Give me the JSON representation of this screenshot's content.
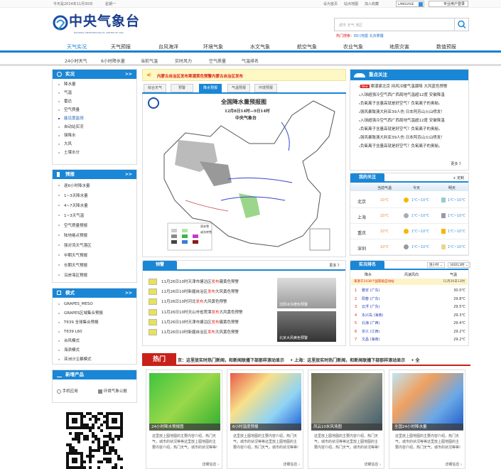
{
  "topbar": {
    "date": "今天是2014年11月30日",
    "weekday": "星期一",
    "links": [
      "设为首页",
      "站点地图",
      "加入收藏"
    ],
    "language": "LANGUAGE",
    "login": "专业用户登录"
  },
  "logo": {
    "title": "中央气象台",
    "subtitle": "NATIONAL METEOROLOGICAL CENTER OF CMA"
  },
  "search": {
    "placeholder": "城市  天气  地区",
    "hot_label": "热门搜索：",
    "hot_links": [
      "四川地震",
      "北京雾霾"
    ]
  },
  "nav": [
    "天气实况",
    "天气预报",
    "台风海洋",
    "环境气象",
    "水文气象",
    "航空气象",
    "农业气象",
    "地质灾害",
    "数值预报"
  ],
  "subnav": [
    "24小时天气",
    "6小时降水量",
    "当前气温",
    "实时风力",
    "空气质量",
    "气温排名"
  ],
  "left": {
    "shikuang": {
      "title": "实况",
      "more": ">>",
      "items": [
        "降水量",
        "气温",
        "雷达",
        "空气质量",
        "能见度监测",
        "自动站实况",
        "强降水",
        "大风",
        "土壤水分"
      ]
    },
    "yubao": {
      "title": "预报",
      "more": ">>",
      "items": [
        "逐6小时降水量",
        "1~3天降水量",
        "4~7天降水量",
        "1~3天气温",
        "空气质量预报",
        "陆地格点预报",
        "强对流天气落区",
        "中期天气预报",
        "长期天气预报",
        "沿岸海区预报"
      ]
    },
    "moshi": {
      "title": "模式",
      "more": ">>",
      "items": [
        "GRAPES_MESO",
        "GRAPES区域集合预报",
        "T639 全球集合预报",
        "T639 L60",
        "台风模式",
        "海浪模式",
        "亚洲沙尘暴模式"
      ]
    },
    "xinzeng": {
      "title": "新增产品",
      "items": [
        "手机应用",
        "环境气象公报"
      ]
    }
  },
  "alert": {
    "text": "内蒙古自治区发布寒潮黄色预警内蒙古自治区发布"
  },
  "map_tabs": [
    "综合天气",
    "预警",
    "降水预报",
    "气温预报",
    "环境预报"
  ],
  "map": {
    "title": "全国降水量预报图",
    "time": "12月8日14时—9日14时",
    "agency": "中央气象台",
    "legend_title": "雨夹雪",
    "legend_sub": "或冻转雪"
  },
  "warnings": {
    "title": "预警",
    "more": "更多 》",
    "items": [
      {
        "pre": "11月26日10时天津市塘沽区",
        "red": "发布",
        "post": "霾黄色预警"
      },
      {
        "pre": "11月26日10时新疆自治区",
        "red": "发布",
        "post": "大风黄色预警"
      },
      {
        "pre": "11月26日10时河北",
        "red": "发布",
        "post": "大风黄色预警"
      },
      {
        "pre": "11月26日10时天山市省莞潭",
        "red": "发布",
        "post": "大风黄色预警"
      },
      {
        "pre": "11月26日10时天津市塘沽区",
        "red": "发布",
        "post": "霾黄色预警"
      },
      {
        "pre": "11月26日10时新疆自治区",
        "red": "发布",
        "post": "大风黄色预警"
      }
    ],
    "photos": [
      "沈阳冰冻橙色预警",
      "北京大风黄色预警"
    ]
  },
  "hot": {
    "title": "热门",
    "ticker": "京：这里放实时热门新闻，和新闻联播下部那样滚动显示    • 上海：这里放实时热门新闻，和新闻联播下部那样滚动显示    • 全",
    "cards": [
      {
        "caption": "24小时降水预报图",
        "text": "这里放上图地图的主要内容介绍，热门天气，城市的状况等等这里放上图地图的主要内容介绍，热门天气，城市的状况等等!",
        "more": "详细信息 ›"
      },
      {
        "caption": "6小时温度预报",
        "text": "这里放上图地图的主要内容介绍，热门天气，城市的状况等等这里放上图地图的主要内容介绍，热门天气，城市的状况等等!",
        "more": "详细信息 ›"
      },
      {
        "caption": "风云10米风场图",
        "text": "这里放上图地图的主要内容介绍，热门天气，城市的状况等等这里放上图地图的主要内容介绍，热门天气，城市的状况等等!",
        "more": "详细信息 ›"
      },
      {
        "caption": "全国24小时降水量",
        "text": "这里放上图地图的主要内容介绍，热门天气，城市的状况等等这里放上图地图的主要内容介绍，热门天气，城市的状况等等!",
        "more": "详细信息 ›"
      }
    ]
  },
  "focus": {
    "title": "重点关注",
    "new_badge": "New",
    "items": [
      "寒潮紧北京  持风冷暖气温骤降    大风蓝色预警",
      "入球超强冷空气西广西局地气温超12度    安徽降温",
      "负氧离子含量高就是好空气？负氧离子的奥秘。",
      "强风暴致澳大利亚39人伤      日本阿苏山火山喷发！",
      "入球超强冷空气西广西局地气温超12度    安徽降温",
      "负氧离子含量高就是好空气？负氧离子的奥秘。",
      "强风暴致澳大利亚39人伤      日本阿苏山火山喷发！",
      "负氧离子含量高就是好空气？负氧离子的奥秘。"
    ],
    "more": "更多 》"
  },
  "my_focus": {
    "title": "我的关注",
    "customize": "+ 定制",
    "headers": [
      "当前气温",
      "今天",
      "明天"
    ],
    "rows": [
      {
        "city": "北京",
        "now": "10℃",
        "today": "1℃~10℃",
        "tomorrow": "1℃~10℃",
        "today_icon": "sunny-icon",
        "tomorrow_icon": "snow-icon"
      },
      {
        "city": "上海",
        "now": "10℃",
        "today": "1℃~10℃",
        "tomorrow": "1℃~10℃",
        "today_icon": "rain-icon",
        "tomorrow_icon": "shower-icon"
      },
      {
        "city": "重庆",
        "now": "10℃",
        "today": "1℃~10℃",
        "tomorrow": "1℃~10℃",
        "today_icon": "cloudy-sun-icon",
        "tomorrow_icon": "thunder-icon"
      },
      {
        "city": "深圳",
        "now": "10℃",
        "today": "1℃~10℃",
        "tomorrow": "1℃~10℃",
        "today_icon": "cloud-icon",
        "tomorrow_icon": "haze-icon"
      }
    ]
  },
  "ranking": {
    "title": "实况排名",
    "select1": "逐小时",
    "select2": "30日13时",
    "headers": [
      "降水",
      "风速风向",
      "气温"
    ],
    "notice": "来源于2438个国家级自动站",
    "notice_time": "11月30日13时",
    "rows": [
      {
        "rank": "1",
        "city": "雅安 (广东)",
        "value": "30.0℃"
      },
      {
        "rank": "2",
        "city": "阳春 (广东)",
        "value": "29.8℃"
      },
      {
        "rank": "3",
        "city": "云浮 (广东)",
        "value": "29.5℃"
      },
      {
        "rank": "4",
        "city": "永兴岛 (海南)",
        "value": "29.3℃"
      },
      {
        "rank": "5",
        "city": "北海 (广西)",
        "value": "29.4℃"
      },
      {
        "rank": "6",
        "city": "崇义 (江西)",
        "value": "29.2℃"
      },
      {
        "rank": "7",
        "city": "文昌 (海南)",
        "value": "29.2℃"
      }
    ]
  },
  "colors": {
    "blue": "#1a86d6",
    "red": "#e2231a",
    "alert_bg": "#fdf7c3"
  }
}
